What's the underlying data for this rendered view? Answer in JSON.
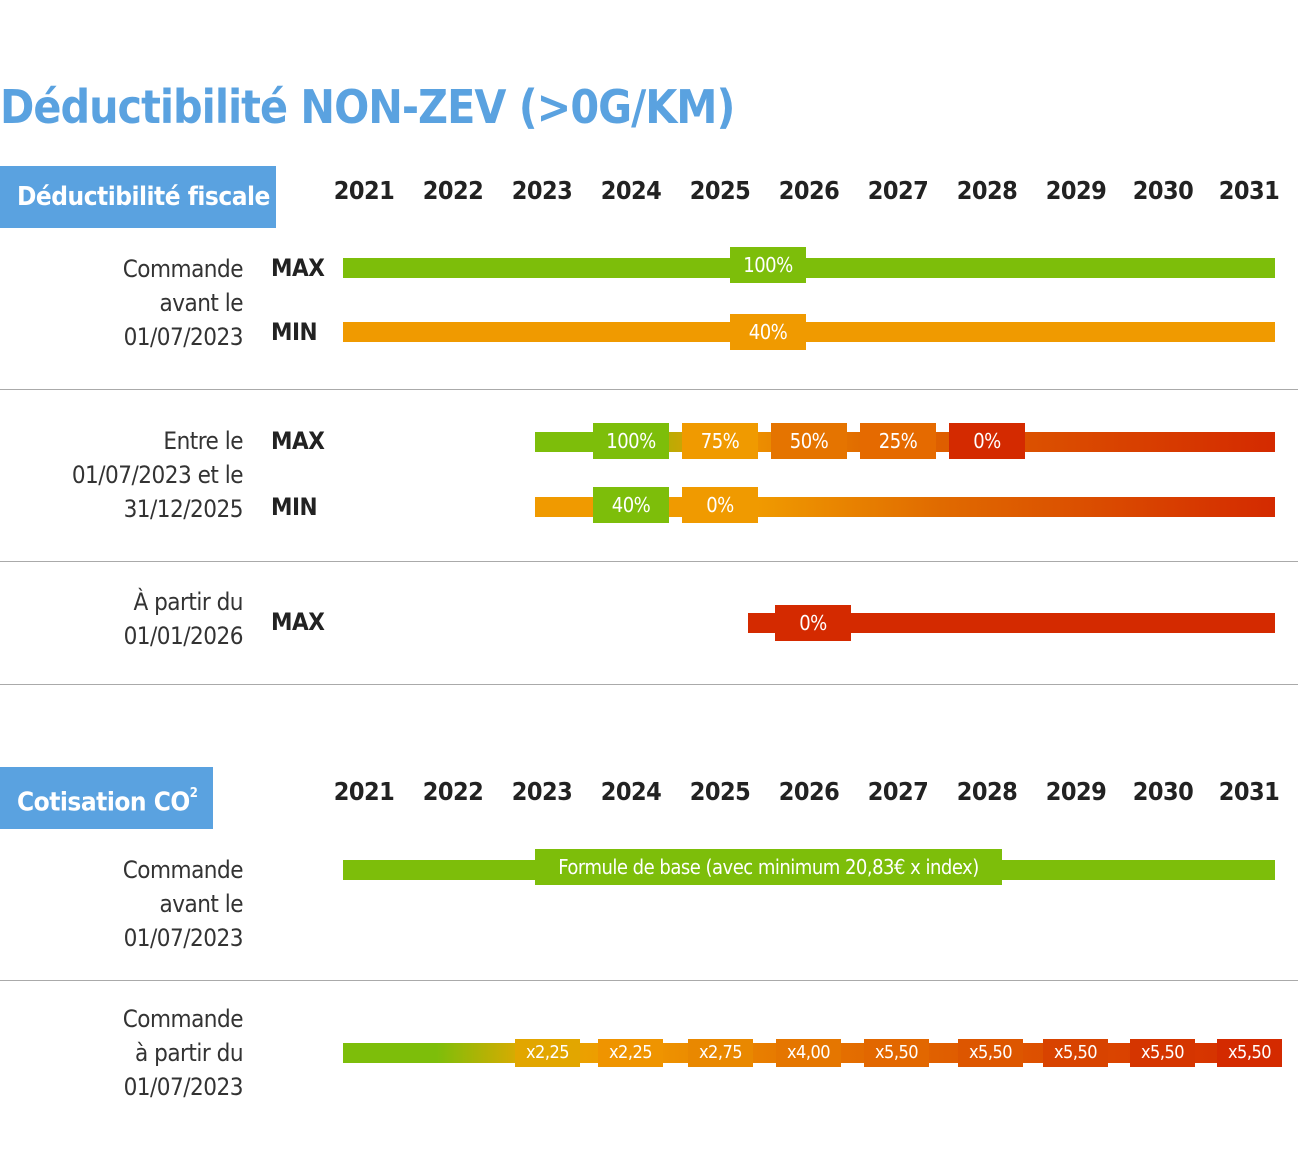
{
  "title": "Déductibilité NON-ZEV (>0G/KM)",
  "years": [
    "2021",
    "2022",
    "2023",
    "2024",
    "2025",
    "2026",
    "2027",
    "2028",
    "2029",
    "2030",
    "2031"
  ],
  "colors": {
    "accent_blue": "#5aa2e0",
    "green": "#7dbe0a",
    "orange": "#f09a00",
    "orange_dark": "#e06a00",
    "red": "#d42a00"
  },
  "deductibility": {
    "header": "Déductibilité fiscale",
    "max_label": "MAX",
    "min_label": "MIN",
    "rows": [
      {
        "label_lines": [
          "Commande",
          "avant le",
          "01/07/2023"
        ],
        "max_values": [
          "100%"
        ],
        "min_values": [
          "40%"
        ]
      },
      {
        "label_lines": [
          "Entre le",
          "01/07/2023 et le",
          "31/12/2025"
        ],
        "max_values": [
          "100%",
          "75%",
          "50%",
          "25%",
          "0%"
        ],
        "min_values": [
          "40%",
          "0%"
        ]
      },
      {
        "label_lines": [
          "À partir du",
          "01/01/2026"
        ],
        "max_values": [
          "0%"
        ]
      }
    ]
  },
  "co2": {
    "header_main": "Cotisation CO",
    "header_sup": "2",
    "rows": [
      {
        "label_lines": [
          "Commande",
          "avant le",
          "01/07/2023"
        ],
        "values": [
          "Formule de base (avec minimum 20,83€ x index)"
        ]
      },
      {
        "label_lines": [
          "Commande",
          "à partir du",
          "01/07/2023"
        ],
        "values": [
          "x2,25",
          "x2,25",
          "x2,75",
          "x4,00",
          "x5,50",
          "x5,50",
          "x5,50",
          "x5,50",
          "x5,50"
        ]
      }
    ]
  }
}
